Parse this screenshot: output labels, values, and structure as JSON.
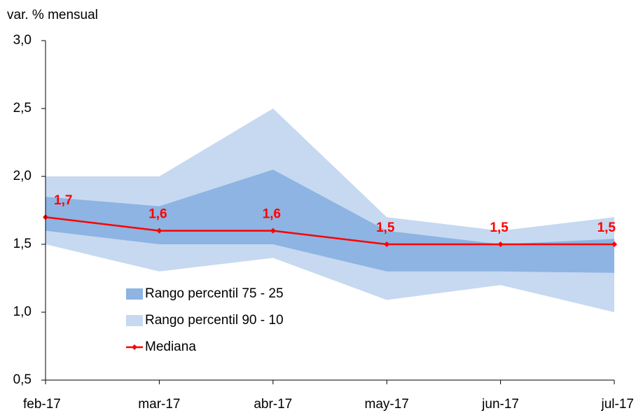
{
  "chart_data": {
    "type": "line",
    "y_axis_label": "var. % mensual",
    "categories": [
      "feb-17",
      "mar-17",
      "abr-17",
      "may-17",
      "jun-17",
      "jul-17"
    ],
    "series": [
      {
        "name": "Rango percentil 75 - 25",
        "color": "#8db4e2",
        "kind": "band",
        "high": [
          1.85,
          1.78,
          2.05,
          1.6,
          1.5,
          1.54
        ],
        "low": [
          1.6,
          1.5,
          1.5,
          1.3,
          1.3,
          1.29
        ]
      },
      {
        "name": "Rango percentil 90 - 10",
        "color": "#c6d9f1",
        "kind": "band",
        "high": [
          2.0,
          2.0,
          2.5,
          1.7,
          1.6,
          1.7
        ],
        "low": [
          1.5,
          1.3,
          1.4,
          1.09,
          1.2,
          1.0
        ]
      },
      {
        "name": "Mediana",
        "color": "#ff0000",
        "kind": "line",
        "values": [
          1.7,
          1.6,
          1.6,
          1.5,
          1.5,
          1.5
        ],
        "value_labels": [
          "1,7",
          "1,6",
          "1,6",
          "1,5",
          "1,5",
          "1,5"
        ]
      }
    ],
    "ylim": [
      0.5,
      3.0
    ],
    "yticks": [
      {
        "value": 0.5,
        "label": "0,5"
      },
      {
        "value": 1.0,
        "label": "1,0"
      },
      {
        "value": 1.5,
        "label": "1,5"
      },
      {
        "value": 2.0,
        "label": "2,0"
      },
      {
        "value": 2.5,
        "label": "2,5"
      },
      {
        "value": 3.0,
        "label": "3,0"
      }
    ],
    "grid": false
  }
}
